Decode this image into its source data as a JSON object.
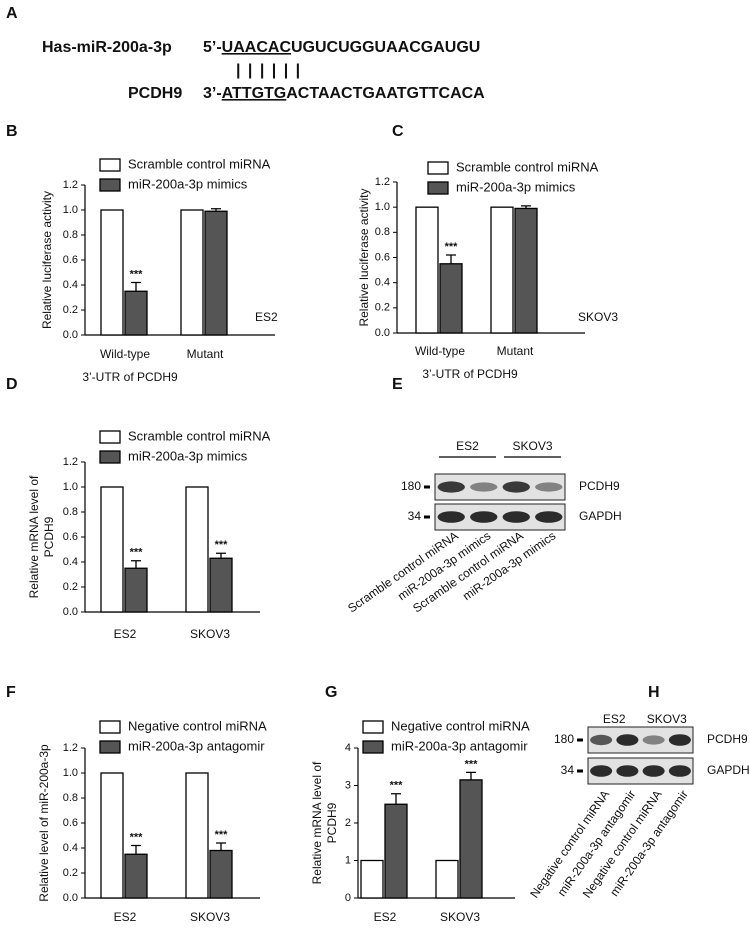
{
  "panel_a": {
    "label": "A",
    "seq1": {
      "name": "Has-miR-200a-3p",
      "prefix": "5’-",
      "seed": "UAACAC",
      "rest": "UGUCUGGUAACGAUGU"
    },
    "pairing": "| | | | | |",
    "seq2": {
      "name": "PCDH9",
      "prefix": "3’-",
      "seed": "ATTGTG",
      "rest": "ACTAACTGAATGTTCACA"
    }
  },
  "blot_e": {
    "label": "E",
    "groups": [
      "ES2",
      "SKOV3"
    ],
    "markers": [
      "180",
      "34"
    ],
    "bands": [
      "PCDH9",
      "GAPDH"
    ],
    "lanes": [
      "Scramble control miRNA",
      "miR-200a-3p mimics",
      "Scramble control miRNA",
      "miR-200a-3p mimics"
    ]
  },
  "blot_h": {
    "label": "H",
    "groups": [
      "ES2",
      "SKOV3"
    ],
    "markers": [
      "180",
      "34"
    ],
    "bands": [
      "PCDH9",
      "GAPDH"
    ],
    "lanes": [
      "Negative control miRNA",
      "miR-200a-3p antagomir",
      "Negative control miRNA",
      "miR-200a-3p antagomir"
    ]
  },
  "chart_data": [
    {
      "type": "bar",
      "panel": "B",
      "ylabel": [
        "Relative luciferase activity"
      ],
      "xlabel": "3’-UTR of PCDH9",
      "annotation": "ES2",
      "categories": [
        "Wild-type",
        "Mutant"
      ],
      "series": [
        {
          "name": "Scramble control miRNA",
          "color": "#ffffff",
          "values": [
            1,
            1
          ]
        },
        {
          "name": "miR-200a-3p mimics",
          "color": "#555555",
          "values": [
            0.35,
            0.99
          ],
          "errors": [
            0.07,
            0.02
          ],
          "significance": [
            "***",
            null
          ]
        }
      ],
      "ylim": [
        0,
        1.2
      ],
      "yticks": [
        {
          "value": 0,
          "label": "0.0"
        },
        {
          "value": 0.2,
          "label": "0.2"
        },
        {
          "value": 0.4,
          "label": "0.4"
        },
        {
          "value": 0.6,
          "label": "0.6"
        },
        {
          "value": 0.8,
          "label": "0.8"
        },
        {
          "value": 1,
          "label": "1.0"
        },
        {
          "value": 1.2,
          "label": "1.2"
        }
      ]
    },
    {
      "type": "bar",
      "panel": "C",
      "ylabel": [
        "Relative luciferase activity"
      ],
      "xlabel": "3’-UTR of PCDH9",
      "annotation": "SKOV3",
      "categories": [
        "Wild-type",
        "Mutant"
      ],
      "series": [
        {
          "name": "Scramble control miRNA",
          "color": "#ffffff",
          "values": [
            1,
            1
          ]
        },
        {
          "name": "miR-200a-3p mimics",
          "color": "#555555",
          "values": [
            0.55,
            0.99
          ],
          "errors": [
            0.07,
            0.02
          ],
          "significance": [
            "***",
            null
          ]
        }
      ],
      "ylim": [
        0,
        1.2
      ],
      "yticks": [
        {
          "value": 0,
          "label": "0.0"
        },
        {
          "value": 0.2,
          "label": "0.2"
        },
        {
          "value": 0.4,
          "label": "0.4"
        },
        {
          "value": 0.6,
          "label": "0.6"
        },
        {
          "value": 0.8,
          "label": "0.8"
        },
        {
          "value": 1,
          "label": "1.0"
        },
        {
          "value": 1.2,
          "label": "1.2"
        }
      ]
    },
    {
      "type": "bar",
      "panel": "D",
      "ylabel": [
        "Relative mRNA level of",
        "PCDH9"
      ],
      "categories": [
        "ES2",
        "SKOV3"
      ],
      "series": [
        {
          "name": "Scramble control miRNA",
          "color": "#ffffff",
          "values": [
            1,
            1
          ]
        },
        {
          "name": "miR-200a-3p mimics",
          "color": "#555555",
          "values": [
            0.35,
            0.43
          ],
          "errors": [
            0.06,
            0.04
          ],
          "significance": [
            "***",
            "***"
          ]
        }
      ],
      "ylim": [
        0,
        1.2
      ],
      "yticks": [
        {
          "value": 0,
          "label": "0.0"
        },
        {
          "value": 0.2,
          "label": "0.2"
        },
        {
          "value": 0.4,
          "label": "0.4"
        },
        {
          "value": 0.6,
          "label": "0.6"
        },
        {
          "value": 0.8,
          "label": "0.8"
        },
        {
          "value": 1,
          "label": "1.0"
        },
        {
          "value": 1.2,
          "label": "1.2"
        }
      ]
    },
    {
      "type": "bar",
      "panel": "F",
      "ylabel": [
        "Relative level of miR-200a-3p"
      ],
      "categories": [
        "ES2",
        "SKOV3"
      ],
      "series": [
        {
          "name": "Negative control miRNA",
          "color": "#ffffff",
          "values": [
            1,
            1
          ]
        },
        {
          "name": "miR-200a-3p antagomir",
          "color": "#555555",
          "values": [
            0.35,
            0.38
          ],
          "errors": [
            0.07,
            0.06
          ],
          "significance": [
            "***",
            "***"
          ]
        }
      ],
      "ylim": [
        0,
        1.2
      ],
      "yticks": [
        {
          "value": 0,
          "label": "0.0"
        },
        {
          "value": 0.2,
          "label": "0.2"
        },
        {
          "value": 0.4,
          "label": "0.4"
        },
        {
          "value": 0.6,
          "label": "0.6"
        },
        {
          "value": 0.8,
          "label": "0.8"
        },
        {
          "value": 1,
          "label": "1.0"
        },
        {
          "value": 1.2,
          "label": "1.2"
        }
      ]
    },
    {
      "type": "bar",
      "panel": "G",
      "ylabel": [
        "Relative mRNA level of",
        "PCDH9"
      ],
      "categories": [
        "ES2",
        "SKOV3"
      ],
      "series": [
        {
          "name": "Negative control miRNA",
          "color": "#ffffff",
          "values": [
            1,
            1
          ]
        },
        {
          "name": "miR-200a-3p antagomir",
          "color": "#555555",
          "values": [
            2.5,
            3.15
          ],
          "errors": [
            0.28,
            0.2
          ],
          "significance": [
            "***",
            "***"
          ]
        }
      ],
      "ylim": [
        0,
        4
      ],
      "yticks": [
        0,
        1,
        2,
        3,
        4
      ]
    }
  ]
}
